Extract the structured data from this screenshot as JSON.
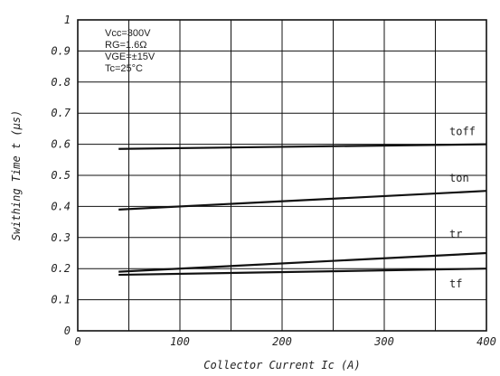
{
  "chart_data": {
    "type": "line",
    "xlabel": "Collector Current Ic (A)",
    "ylabel": "Swithing Time t (μs)",
    "xlim": [
      0,
      400
    ],
    "ylim": [
      0,
      1
    ],
    "x_ticks": [
      "0",
      "100",
      "200",
      "300",
      "400"
    ],
    "y_ticks": [
      "0",
      "0.1",
      "0.2",
      "0.3",
      "0.4",
      "0.5",
      "0.6",
      "0.7",
      "0.8",
      "0.9",
      "1"
    ],
    "x_minor_grid_step": 50,
    "grid": true,
    "conditions": [
      "Vcc=300V",
      "RG=1.6Ω",
      "VGE=±15V",
      "Tc=25°C"
    ],
    "series": [
      {
        "name": "toff",
        "x": [
          40,
          400
        ],
        "y": [
          0.585,
          0.6
        ]
      },
      {
        "name": "ton",
        "x": [
          40,
          400
        ],
        "y": [
          0.39,
          0.45
        ]
      },
      {
        "name": "tr",
        "x": [
          40,
          400
        ],
        "y": [
          0.19,
          0.25
        ]
      },
      {
        "name": "tf",
        "x": [
          40,
          400
        ],
        "y": [
          0.18,
          0.2
        ]
      }
    ]
  }
}
